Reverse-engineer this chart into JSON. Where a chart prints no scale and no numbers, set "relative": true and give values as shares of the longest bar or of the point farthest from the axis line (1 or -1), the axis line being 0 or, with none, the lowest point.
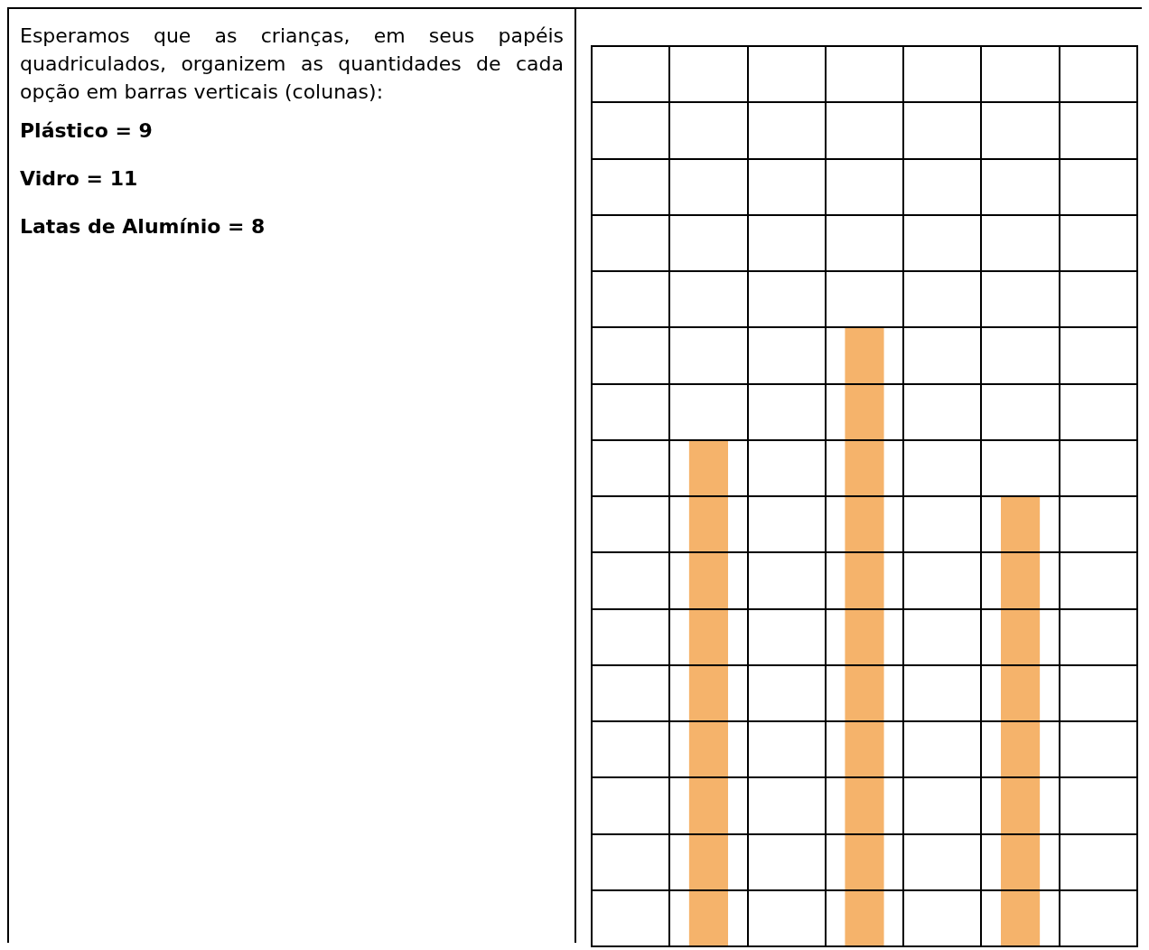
{
  "chart_data": {
    "type": "bar",
    "categories": [
      null,
      null,
      null
    ],
    "values": [
      0.818,
      1,
      0.727
    ],
    "relative": true,
    "color": "#f5b36b",
    "grid": true,
    "annotations": [
      "Esperamos que as crianças, em seus papéis quadriculados, organizem as quantidades de cada opção em barras verticais (colunas):",
      "Plástico = 9",
      "Vidro = 11",
      "Latas de Alumínio = 8"
    ]
  }
}
